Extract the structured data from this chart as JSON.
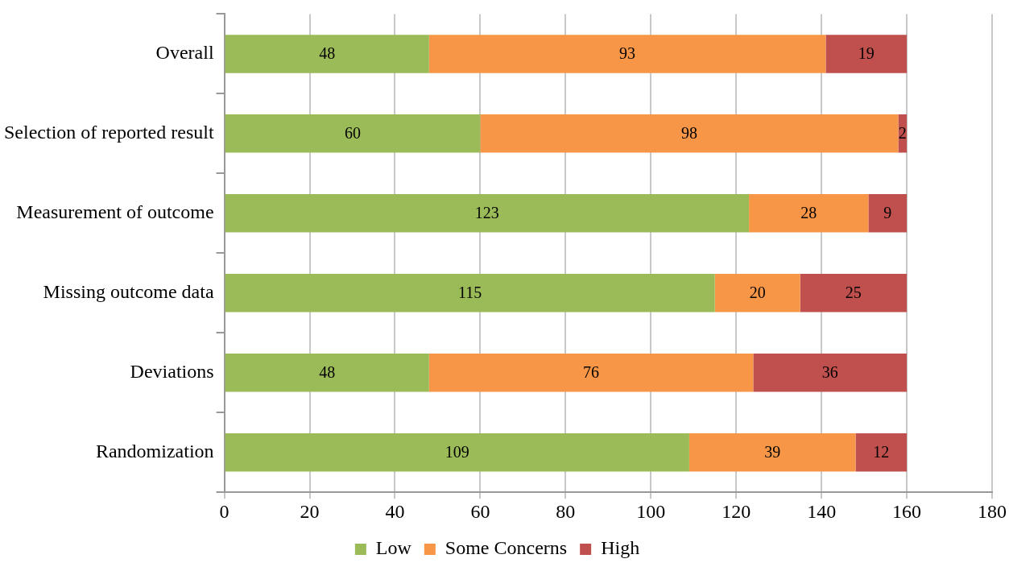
{
  "chart_data": {
    "type": "bar",
    "orientation": "horizontal",
    "stacked": true,
    "categories": [
      "Overall",
      "Selection of reported result",
      "Measurement of outcome",
      "Missing outcome data",
      "Deviations",
      "Randomization"
    ],
    "series": [
      {
        "name": "Low",
        "color": "#9bbb59",
        "values": [
          48,
          60,
          123,
          115,
          48,
          109
        ]
      },
      {
        "name": "Some Concerns",
        "color": "#f79646",
        "values": [
          93,
          98,
          28,
          20,
          76,
          39
        ]
      },
      {
        "name": "High",
        "color": "#c0504d",
        "values": [
          19,
          2,
          9,
          25,
          36,
          12
        ]
      }
    ],
    "xlim": [
      0,
      180
    ],
    "xticks": [
      0,
      20,
      40,
      60,
      80,
      100,
      120,
      140,
      160,
      180
    ],
    "grid": "x",
    "legend": "bottom",
    "data_labels": true
  }
}
